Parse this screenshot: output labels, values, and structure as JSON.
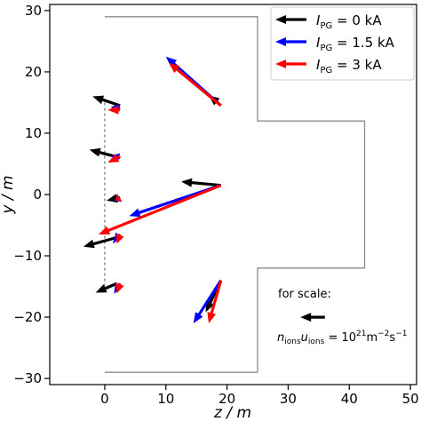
{
  "chart_data": {
    "type": "quiver",
    "title": "",
    "xlabel": "z / m",
    "ylabel": "y / m",
    "xlim": [
      -9,
      51
    ],
    "ylim": [
      -31,
      31
    ],
    "xticks": [
      0,
      10,
      20,
      30,
      40,
      50
    ],
    "yticks": [
      -30,
      -20,
      -10,
      0,
      10,
      20,
      30
    ],
    "grid": false,
    "legend_position": "top-right",
    "colors": {
      "I_PG = 0 kA": "#000000",
      "I_PG = 1.5 kA": "#0000ff",
      "I_PG = 3 kA": "#ff0000",
      "outline": "#8c8c8c"
    },
    "legend": [
      {
        "label": "I",
        "sub": "PG",
        "value": " = 0 kA",
        "color": "#000000"
      },
      {
        "label": "I",
        "sub": "PG",
        "value": " = 1.5 kA",
        "color": "#0000ff"
      },
      {
        "label": "I",
        "sub": "PG",
        "value": " = 3 kA",
        "color": "#ff0000"
      }
    ],
    "outline": [
      [
        0,
        29
      ],
      [
        25,
        29
      ],
      [
        25,
        12
      ],
      [
        42.5,
        12
      ],
      [
        42.5,
        -12
      ],
      [
        25,
        -12
      ],
      [
        25,
        -29
      ],
      [
        0,
        -29
      ]
    ],
    "dashed_line": {
      "z": 0,
      "y_from": -15,
      "y_to": 15
    },
    "series": [
      {
        "name": "I_PG = 0 kA",
        "arrows": [
          {
            "z": 18.5,
            "y": 15.0,
            "dz": -1.5,
            "dy": 1.2
          },
          {
            "z": 2.5,
            "y": 14.5,
            "dz": -4.5,
            "dy": 1.5
          },
          {
            "z": 2.5,
            "y": 6.0,
            "dz": -5.0,
            "dy": 1.3
          },
          {
            "z": 19.0,
            "y": 1.5,
            "dz": -6.5,
            "dy": 0.6
          },
          {
            "z": 2.5,
            "y": -0.5,
            "dz": -2.2,
            "dy": -0.5
          },
          {
            "z": 2.0,
            "y": -7.0,
            "dz": -5.5,
            "dy": -1.5
          },
          {
            "z": 2.0,
            "y": -14.5,
            "dz": -3.5,
            "dy": -1.5
          },
          {
            "z": 19.0,
            "y": -14.0,
            "dz": -2.5,
            "dy": -5.2
          }
        ]
      },
      {
        "name": "I_PG = 1.5 kA",
        "arrows": [
          {
            "z": 19.0,
            "y": 14.5,
            "dz": -9.0,
            "dy": 8.0
          },
          {
            "z": 2.5,
            "y": 14.0,
            "dz": -1.5,
            "dy": 0.3
          },
          {
            "z": 2.5,
            "y": 6.0,
            "dz": -1.5,
            "dy": 0.3
          },
          {
            "z": 19.0,
            "y": 1.5,
            "dz": -15.0,
            "dy": -5.0
          },
          {
            "z": 2.5,
            "y": -0.5,
            "dz": -1.0,
            "dy": -0.5
          },
          {
            "z": 2.5,
            "y": -6.5,
            "dz": -1.2,
            "dy": -1.5
          },
          {
            "z": 2.5,
            "y": -14.5,
            "dz": -1.0,
            "dy": -1.7
          },
          {
            "z": 19.0,
            "y": -14.0,
            "dz": -4.5,
            "dy": -7.0
          }
        ]
      },
      {
        "name": "I_PG = 3 kA",
        "arrows": [
          {
            "z": 19.0,
            "y": 14.5,
            "dz": -8.5,
            "dy": 7.0
          },
          {
            "z": 2.5,
            "y": 13.8,
            "dz": -2.0,
            "dy": 0.0
          },
          {
            "z": 2.5,
            "y": 6.2,
            "dz": -2.0,
            "dy": -1.0
          },
          {
            "z": 19.0,
            "y": 1.5,
            "dz": -20.0,
            "dy": -8.0
          },
          {
            "z": 2.5,
            "y": -0.5,
            "dz": -0.7,
            "dy": -0.5
          },
          {
            "z": 2.5,
            "y": -6.5,
            "dz": -0.5,
            "dy": -1.5
          },
          {
            "z": 2.5,
            "y": -14.5,
            "dz": -0.5,
            "dy": -1.6
          },
          {
            "z": 19.0,
            "y": -14.0,
            "dz": -2.0,
            "dy": -7.0
          }
        ]
      }
    ],
    "scale_arrow": {
      "z": 36.0,
      "y": -20.0,
      "dz": -4.0,
      "dy": 0.0,
      "color": "#000000"
    },
    "annotations": {
      "for_scale": "for scale:",
      "scale_formula": {
        "n": "n",
        "n_sub": "ions",
        "u": "u",
        "u_sub": "ions",
        "eq": " = 10",
        "exp": "21",
        "unit": "m",
        "unit_exp1": "−2",
        "s": "s",
        "unit_exp2": "−1"
      }
    }
  }
}
